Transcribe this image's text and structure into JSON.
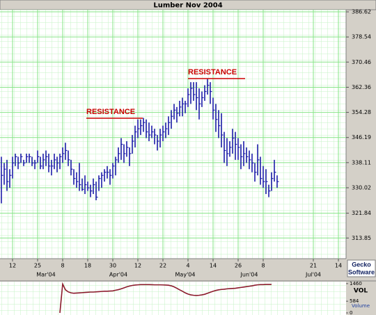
{
  "chart_data": [
    {
      "type": "ohlc",
      "title": "Lumber Nov 2004",
      "color": "#1c1ca8",
      "grid": true,
      "categories": [
        null,
        null,
        null,
        null,
        "12",
        null,
        null,
        null,
        null,
        null,
        null,
        null,
        null,
        "25",
        null,
        null,
        null,
        null,
        null,
        null,
        null,
        null,
        "8",
        null,
        null,
        null,
        null,
        null,
        null,
        null,
        null,
        "18",
        null,
        null,
        null,
        null,
        null,
        null,
        null,
        null,
        "30",
        null,
        null,
        null,
        null,
        null,
        null,
        null,
        null,
        "12",
        null,
        null,
        null,
        null,
        null,
        null,
        null,
        null,
        "22",
        null,
        null,
        null,
        null,
        null,
        null,
        null,
        null,
        "4",
        null,
        null,
        null,
        null,
        null,
        null,
        null,
        null,
        "14",
        null,
        null,
        null,
        null,
        null,
        null,
        null,
        null,
        "26",
        null,
        null,
        null,
        null,
        null,
        null,
        null,
        null,
        "8",
        null,
        null,
        null,
        null,
        null,
        null,
        null,
        null,
        null,
        null,
        null,
        null,
        null,
        null,
        null,
        null,
        null,
        "21",
        null,
        null,
        null,
        null,
        null,
        null,
        null,
        null,
        "14",
        null,
        null
      ],
      "months": [
        null,
        null,
        null,
        null,
        null,
        null,
        null,
        null,
        null,
        null,
        null,
        null,
        null,
        null,
        null,
        null,
        "Mar'04",
        null,
        null,
        null,
        null,
        null,
        null,
        null,
        null,
        null,
        null,
        null,
        null,
        null,
        null,
        null,
        null,
        null,
        null,
        null,
        null,
        null,
        null,
        null,
        null,
        null,
        "Apr'04",
        null,
        null,
        null,
        null,
        null,
        null,
        null,
        null,
        null,
        null,
        null,
        null,
        null,
        null,
        null,
        null,
        null,
        null,
        null,
        null,
        null,
        null,
        null,
        "May'04",
        null,
        null,
        null,
        null,
        null,
        null,
        null,
        null,
        null,
        null,
        null,
        null,
        null,
        null,
        null,
        null,
        null,
        null,
        null,
        null,
        null,
        null,
        "Jun'04",
        null,
        null,
        null,
        null,
        null,
        null,
        null,
        null,
        null,
        null,
        null,
        null,
        null,
        null,
        null,
        null,
        null,
        null,
        null,
        null,
        null,
        null,
        "Jul'04",
        null,
        null,
        null,
        null,
        null,
        null,
        null,
        null,
        null,
        null,
        null
      ],
      "high": [
        340,
        338,
        339,
        336,
        340,
        341,
        340,
        341,
        339,
        341,
        341,
        340,
        339,
        342,
        340,
        341,
        342,
        341,
        339,
        341,
        340,
        341,
        343,
        344.5,
        342,
        339,
        336,
        335,
        338,
        333,
        334,
        332,
        331,
        333,
        332,
        334,
        335,
        336,
        337,
        336,
        338,
        340,
        343,
        346,
        344,
        345,
        343,
        347,
        350,
        352,
        352,
        352.5,
        352,
        351,
        350,
        349,
        347,
        349,
        350,
        351,
        353,
        355,
        357,
        356,
        358,
        359,
        358,
        362,
        364,
        364,
        364,
        362,
        361,
        363,
        365,
        364,
        359,
        357,
        355,
        354,
        348,
        346,
        345,
        349,
        348,
        346,
        344,
        345,
        343,
        342,
        341,
        338,
        344,
        340,
        337,
        336,
        331,
        335,
        339,
        334,
        null,
        null,
        null,
        null,
        null,
        null,
        null,
        null,
        null,
        null,
        null,
        null,
        null,
        null,
        null,
        null,
        null,
        null,
        null,
        null,
        null,
        null,
        null,
        null
      ],
      "low": [
        325,
        331,
        329,
        330,
        333,
        337,
        336,
        338,
        337,
        338,
        338,
        337,
        336,
        338,
        336,
        336,
        337,
        335,
        334,
        336,
        335,
        336,
        338,
        339,
        337,
        334,
        331,
        330,
        329,
        329,
        328,
        329,
        327,
        328,
        326,
        329,
        330,
        332,
        333,
        331,
        333,
        334,
        338,
        339,
        338,
        340,
        337,
        341,
        343,
        346,
        347,
        348,
        346,
        345,
        346,
        344,
        342,
        343,
        345,
        346,
        347,
        349,
        352,
        351,
        353,
        353,
        354,
        356,
        357,
        358,
        355,
        352,
        356,
        358,
        360,
        357,
        352,
        348,
        346,
        343,
        338,
        337,
        340,
        341,
        339,
        339,
        336,
        337,
        338,
        336,
        335,
        332,
        334,
        331,
        330,
        328,
        327,
        329,
        332,
        330,
        null,
        null,
        null,
        null,
        null,
        null,
        null,
        null,
        null,
        null,
        null,
        null,
        null,
        null,
        null,
        null,
        null,
        null,
        null,
        null,
        null,
        null,
        null,
        null
      ],
      "close": [
        334,
        336,
        332,
        334,
        338,
        340,
        338,
        340,
        338,
        340,
        340,
        338,
        338,
        340,
        337,
        339,
        340,
        337,
        337,
        339,
        338,
        340,
        341,
        342,
        339,
        336,
        333,
        332,
        331,
        329.5,
        331,
        330,
        329,
        331,
        327,
        333,
        334,
        335,
        335,
        334,
        337,
        339,
        341,
        344,
        341,
        343,
        341,
        345,
        348,
        349,
        350,
        351,
        348,
        347,
        348,
        347,
        345,
        347,
        348,
        349,
        351,
        353,
        355,
        354,
        356,
        357,
        357,
        360,
        362,
        360,
        359,
        357,
        359,
        361,
        363,
        361,
        355,
        352,
        350,
        347,
        342,
        341,
        343,
        346,
        344,
        343,
        340,
        341,
        340,
        339,
        338,
        335,
        339,
        333,
        332,
        332,
        329,
        333,
        335,
        332,
        null,
        null,
        null,
        null,
        null,
        null,
        null,
        null,
        null,
        null,
        null,
        null,
        null,
        null,
        null,
        null,
        null,
        null,
        null,
        null,
        null,
        null,
        null,
        null
      ],
      "ylim": [
        307.2,
        387.3
      ],
      "yticks": [
        386.62,
        378.54,
        370.46,
        362.36,
        354.28,
        346.19,
        338.11,
        330.02,
        321.84,
        313.85
      ],
      "annotations": [
        "RESISTANCE",
        "RESISTANCE"
      ]
    },
    {
      "type": "line",
      "ylabel": "VOL",
      "series": [
        {
          "name": "Volume",
          "color": "#8b1a2b",
          "values": [
            null,
            null,
            null,
            null,
            null,
            null,
            null,
            null,
            null,
            null,
            null,
            null,
            null,
            null,
            null,
            null,
            null,
            null,
            null,
            null,
            null,
            0,
            1440,
            1150,
            1050,
            1000,
            980,
            990,
            1000,
            1010,
            1020,
            1030,
            1040,
            1040,
            1050,
            1060,
            1070,
            1080,
            1080,
            1090,
            1100,
            1130,
            1160,
            1200,
            1250,
            1300,
            1340,
            1370,
            1390,
            1400,
            1410,
            1410,
            1410,
            1410,
            1405,
            1400,
            1400,
            1400,
            1395,
            1390,
            1380,
            1350,
            1300,
            1230,
            1150,
            1080,
            1000,
            940,
            900,
            880,
            870,
            880,
            900,
            930,
            980,
            1030,
            1080,
            1120,
            1150,
            1170,
            1180,
            1200,
            1210,
            1220,
            1230,
            1250,
            1270,
            1290,
            1310,
            1330,
            1350,
            1380,
            1400,
            1410,
            1410,
            1420,
            1420,
            1420,
            null,
            null,
            null,
            null,
            null,
            null,
            null,
            null,
            null,
            null,
            null,
            null,
            null,
            null,
            null,
            null,
            null,
            null,
            null,
            null,
            null,
            null,
            null,
            null,
            null,
            null
          ]
        }
      ],
      "ylim": [
        0,
        1560
      ],
      "yticks": [
        0,
        584,
        1460
      ]
    }
  ],
  "branding": {
    "line1": "Gecko",
    "line2": "Software"
  }
}
